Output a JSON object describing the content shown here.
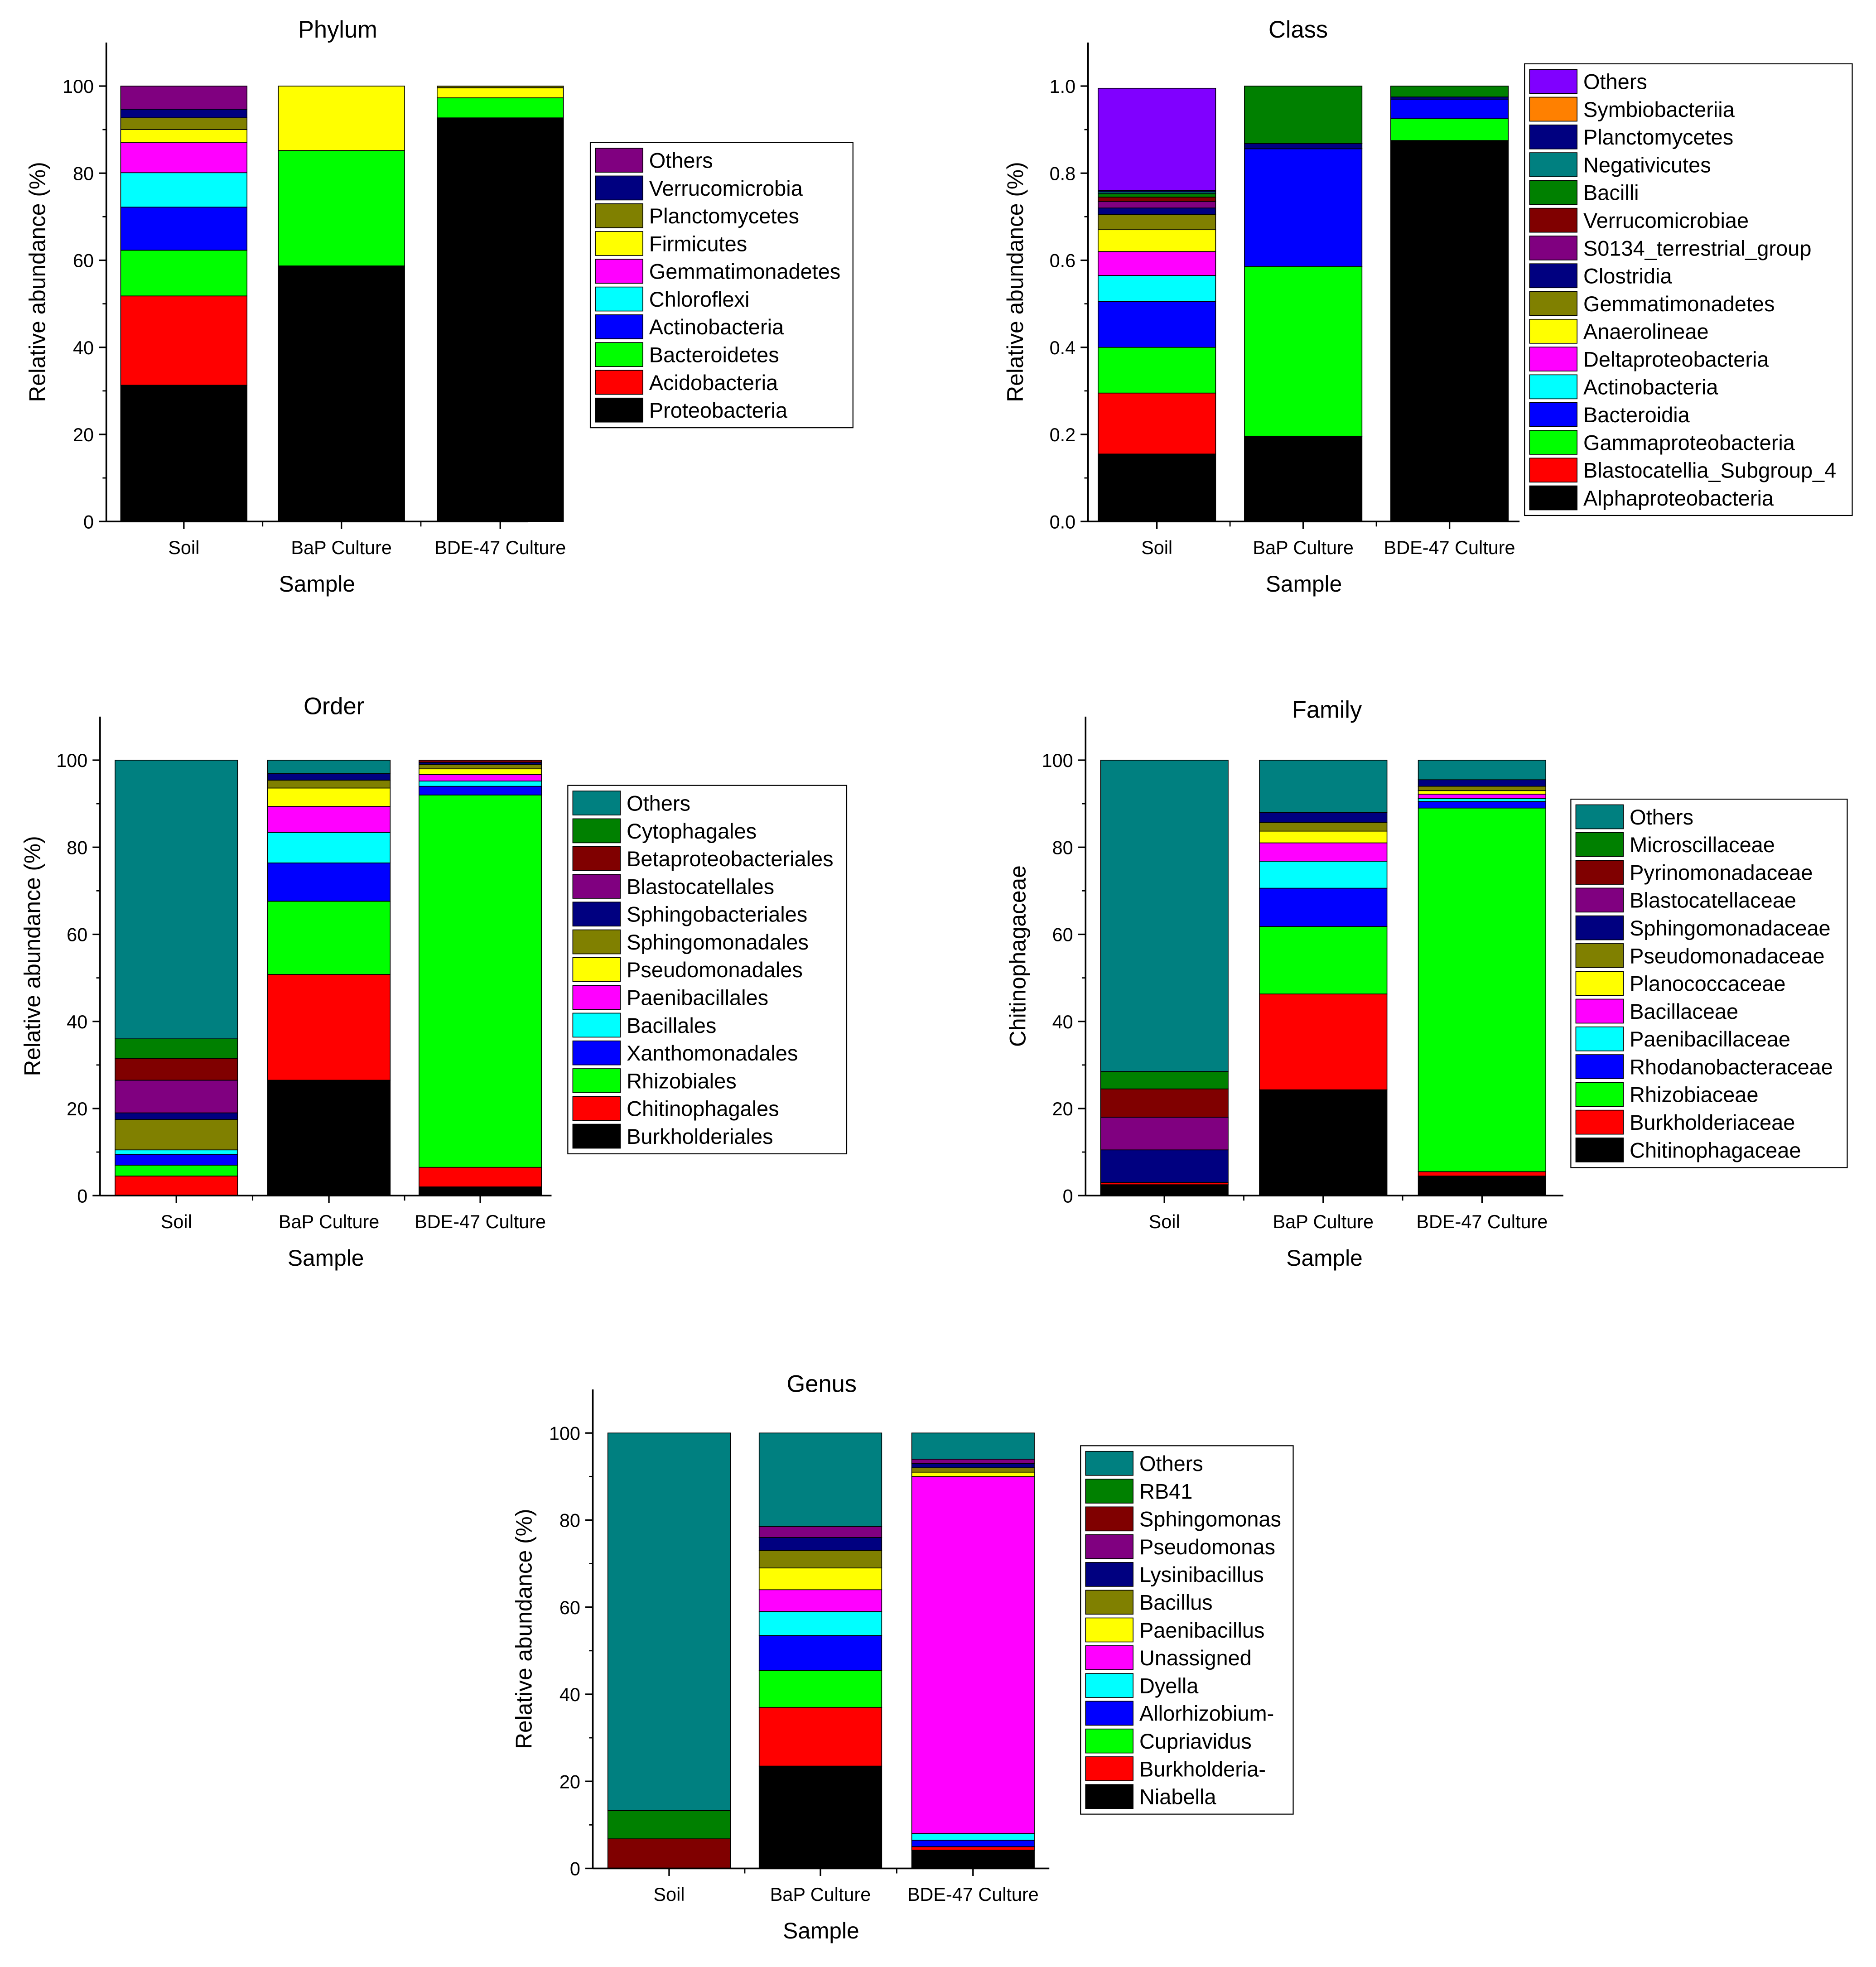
{
  "colors": {
    "black": "#000000",
    "red": "#ff0000",
    "green": "#00ff00",
    "blue": "#0000ff",
    "cyan": "#00ffff",
    "magenta": "#ff00ff",
    "yellow": "#ffff00",
    "olive": "#808000",
    "navy": "#000080",
    "purple": "#800080",
    "maroon": "#800000",
    "darkgreen": "#008000",
    "teal": "#008080",
    "orange": "#ff8000",
    "violet": "#8000ff"
  },
  "chart_data": [
    {
      "type": "bar",
      "stacked": true,
      "title": "Phylum",
      "xlabel": "Sample",
      "ylabel": "Relative abundance (%)",
      "ylim": [
        0,
        110
      ],
      "yticks": [
        0,
        20,
        40,
        60,
        80,
        100
      ],
      "ytick_labels": [
        "0",
        "20",
        "40",
        "60",
        "80",
        "100"
      ],
      "legend_position": "right",
      "categories": [
        "Soil",
        "BaP Culture",
        "BDE-47 Culture"
      ],
      "series": [
        {
          "name": "Proteobacteria",
          "color": "#000000",
          "values": [
            31.3,
            58.7,
            92.7
          ]
        },
        {
          "name": "Acidobacteria",
          "color": "#ff0000",
          "values": [
            20.5,
            0,
            0
          ]
        },
        {
          "name": "Bacteroidetes",
          "color": "#00ff00",
          "values": [
            10.5,
            26.5,
            4.6
          ]
        },
        {
          "name": "Actinobacteria",
          "color": "#0000ff",
          "values": [
            9.9,
            0,
            0
          ]
        },
        {
          "name": "Chloroflexi",
          "color": "#00ffff",
          "values": [
            7.9,
            0,
            0
          ]
        },
        {
          "name": "Gemmatimonadetes",
          "color": "#ff00ff",
          "values": [
            6.9,
            0,
            0
          ]
        },
        {
          "name": "Firmicutes",
          "color": "#ffff00",
          "values": [
            3.0,
            14.8,
            2.3
          ]
        },
        {
          "name": "Planctomycetes",
          "color": "#808000",
          "values": [
            2.7,
            0,
            0.4
          ]
        },
        {
          "name": "Verrucomicrobia",
          "color": "#000080",
          "values": [
            2.0,
            0,
            0
          ]
        },
        {
          "name": "Others",
          "color": "#800080",
          "values": [
            5.3,
            0,
            0
          ]
        }
      ]
    },
    {
      "type": "bar",
      "stacked": true,
      "title": "Class",
      "xlabel": "Sample",
      "ylabel": "Relative abundance (%)",
      "ylim": [
        0,
        1.1
      ],
      "yticks": [
        0,
        0.2,
        0.4,
        0.6,
        0.8,
        1.0
      ],
      "ytick_labels": [
        "0.0",
        "0.2",
        "0.4",
        "0.6",
        "0.8",
        "1.0"
      ],
      "legend_position": "right",
      "categories": [
        "Soil",
        "BaP Culture",
        "BDE-47 Culture"
      ],
      "series": [
        {
          "name": "Alphaproteobacteria",
          "color": "#000000",
          "values": [
            0.155,
            0.196,
            0.875
          ]
        },
        {
          "name": "Blastocatellia_Subgroup_4",
          "color": "#ff0000",
          "values": [
            0.14,
            0,
            0
          ]
        },
        {
          "name": "Gammaproteobacteria",
          "color": "#00ff00",
          "values": [
            0.105,
            0.39,
            0.05
          ]
        },
        {
          "name": "Bacteroidia",
          "color": "#0000ff",
          "values": [
            0.105,
            0.27,
            0.045
          ]
        },
        {
          "name": "Actinobacteria",
          "color": "#00ffff",
          "values": [
            0.06,
            0,
            0
          ]
        },
        {
          "name": "Deltaproteobacteria",
          "color": "#ff00ff",
          "values": [
            0.055,
            0,
            0
          ]
        },
        {
          "name": "Anaerolineae",
          "color": "#ffff00",
          "values": [
            0.05,
            0,
            0
          ]
        },
        {
          "name": "Gemmatimonadetes",
          "color": "#808000",
          "values": [
            0.035,
            0,
            0
          ]
        },
        {
          "name": "Clostridia",
          "color": "#000080",
          "values": [
            0.015,
            0.012,
            0.005
          ]
        },
        {
          "name": "S0134_terrestrial_group",
          "color": "#800080",
          "values": [
            0.015,
            0,
            0
          ]
        },
        {
          "name": "Verrucomicrobiae",
          "color": "#800000",
          "values": [
            0.01,
            0,
            0
          ]
        },
        {
          "name": "Bacilli",
          "color": "#008000",
          "values": [
            0.008,
            0.132,
            0.025
          ]
        },
        {
          "name": "Negativicutes",
          "color": "#008080",
          "values": [
            0.004,
            0,
            0
          ]
        },
        {
          "name": "Planctomycetes",
          "color": "#000080",
          "values": [
            0.003,
            0,
            0
          ]
        },
        {
          "name": "Symbiobacteriia",
          "color": "#ff8000",
          "values": [
            0,
            0,
            0
          ]
        },
        {
          "name": "Others",
          "color": "#8000ff",
          "values": [
            0.235,
            0,
            0
          ]
        }
      ]
    },
    {
      "type": "bar",
      "stacked": true,
      "title": "Order",
      "xlabel": "Sample",
      "ylabel": "Relative abundance (%)",
      "ylim": [
        0,
        110
      ],
      "yticks": [
        0,
        20,
        40,
        60,
        80,
        100
      ],
      "ytick_labels": [
        "0",
        "20",
        "40",
        "60",
        "80",
        "100"
      ],
      "legend_position": "right",
      "categories": [
        "Soil",
        "BaP Culture",
        "BDE-47 Culture"
      ],
      "series": [
        {
          "name": "Burkholderiales",
          "color": "#000000",
          "values": [
            0,
            26.5,
            2.0
          ]
        },
        {
          "name": "Chitinophagales",
          "color": "#ff0000",
          "values": [
            4.5,
            24.3,
            4.5
          ]
        },
        {
          "name": "Rhizobiales",
          "color": "#00ff00",
          "values": [
            2.5,
            16.8,
            85.5
          ]
        },
        {
          "name": "Xanthomonadales",
          "color": "#0000ff",
          "values": [
            2.5,
            8.8,
            2.0
          ]
        },
        {
          "name": "Bacillales",
          "color": "#00ffff",
          "values": [
            1.0,
            7.0,
            1.2
          ]
        },
        {
          "name": "Paenibacillales",
          "color": "#ff00ff",
          "values": [
            0,
            6.0,
            1.5
          ]
        },
        {
          "name": "Pseudomonadales",
          "color": "#ffff00",
          "values": [
            0,
            4.2,
            1.3
          ]
        },
        {
          "name": "Sphingomonadales",
          "color": "#808000",
          "values": [
            7.0,
            1.8,
            1.0
          ]
        },
        {
          "name": "Sphingobacteriales",
          "color": "#000080",
          "values": [
            1.5,
            1.5,
            0.5
          ]
        },
        {
          "name": "Blastocatellales",
          "color": "#800080",
          "values": [
            7.5,
            0,
            0
          ]
        },
        {
          "name": "Betaproteobacteriales",
          "color": "#800000",
          "values": [
            5.0,
            0,
            0.5
          ]
        },
        {
          "name": "Cytophagales",
          "color": "#008000",
          "values": [
            4.5,
            0,
            0
          ]
        },
        {
          "name": "Others",
          "color": "#008080",
          "values": [
            64.0,
            3.1,
            0
          ]
        }
      ]
    },
    {
      "type": "bar",
      "stacked": true,
      "title": "Family",
      "xlabel": "Sample",
      "ylabel": "Chitinophagaceae",
      "ylim": [
        0,
        110
      ],
      "yticks": [
        0,
        20,
        40,
        60,
        80,
        100
      ],
      "ytick_labels": [
        "0",
        "20",
        "40",
        "60",
        "80",
        "100"
      ],
      "legend_position": "right",
      "categories": [
        "Soil",
        "BaP Culture",
        "BDE-47 Culture"
      ],
      "series": [
        {
          "name": "Chitinophagaceae",
          "color": "#000000",
          "values": [
            2.5,
            24.3,
            4.5
          ]
        },
        {
          "name": "Burkholderiaceae",
          "color": "#ff0000",
          "values": [
            0.5,
            22.0,
            1.0
          ]
        },
        {
          "name": "Rhizobiaceae",
          "color": "#00ff00",
          "values": [
            0,
            15.5,
            83.5
          ]
        },
        {
          "name": "Rhodanobacteraceae",
          "color": "#0000ff",
          "values": [
            0,
            8.8,
            1.5
          ]
        },
        {
          "name": "Paenibacillaceae",
          "color": "#00ffff",
          "values": [
            0,
            6.2,
            0.7
          ]
        },
        {
          "name": "Bacillaceae",
          "color": "#ff00ff",
          "values": [
            0,
            4.2,
            1.0
          ]
        },
        {
          "name": "Planococcaceae",
          "color": "#ffff00",
          "values": [
            0,
            2.7,
            0.8
          ]
        },
        {
          "name": "Pseudomonadaceae",
          "color": "#808000",
          "values": [
            0,
            2.0,
            1.0
          ]
        },
        {
          "name": "Sphingomonadaceae",
          "color": "#000080",
          "values": [
            7.5,
            2.3,
            1.5
          ]
        },
        {
          "name": "Blastocatellaceae",
          "color": "#800080",
          "values": [
            7.5,
            0,
            0
          ]
        },
        {
          "name": "Pyrinomonadaceae",
          "color": "#800000",
          "values": [
            6.5,
            0,
            0
          ]
        },
        {
          "name": "Microscillaceae",
          "color": "#008000",
          "values": [
            4.0,
            0,
            0
          ]
        },
        {
          "name": "Others",
          "color": "#008080",
          "values": [
            71.5,
            12.0,
            4.5
          ]
        }
      ]
    },
    {
      "type": "bar",
      "stacked": true,
      "title": "Genus",
      "xlabel": "Sample",
      "ylabel": "Relative abundance (%)",
      "ylim": [
        0,
        110
      ],
      "yticks": [
        0,
        20,
        40,
        60,
        80,
        100
      ],
      "ytick_labels": [
        "0",
        "20",
        "40",
        "60",
        "80",
        "100"
      ],
      "legend_position": "right",
      "categories": [
        "Soil",
        "BaP Culture",
        "BDE-47 Culture"
      ],
      "series": [
        {
          "name": "Niabella",
          "color": "#000000",
          "values": [
            0,
            23.5,
            4.2
          ]
        },
        {
          "name": "Burkholderia-",
          "color": "#ff0000",
          "values": [
            0,
            13.5,
            0.8
          ]
        },
        {
          "name": "Cupriavidus",
          "color": "#00ff00",
          "values": [
            0,
            8.5,
            0
          ]
        },
        {
          "name": "Allorhizobium-",
          "color": "#0000ff",
          "values": [
            0,
            8.0,
            1.5
          ]
        },
        {
          "name": "Dyella",
          "color": "#00ffff",
          "values": [
            0,
            5.5,
            1.5
          ]
        },
        {
          "name": "Unassigned",
          "color": "#ff00ff",
          "values": [
            0,
            5.0,
            82.0
          ]
        },
        {
          "name": "Paenibacillus",
          "color": "#ffff00",
          "values": [
            0,
            5.0,
            1.0
          ]
        },
        {
          "name": "Bacillus",
          "color": "#808000",
          "values": [
            0,
            4.0,
            1.0
          ]
        },
        {
          "name": "Lysinibacillus",
          "color": "#000080",
          "values": [
            0,
            3.0,
            1.0
          ]
        },
        {
          "name": "Pseudomonas",
          "color": "#800080",
          "values": [
            0,
            2.5,
            1.0
          ]
        },
        {
          "name": "Sphingomonas",
          "color": "#800000",
          "values": [
            6.8,
            0,
            0
          ]
        },
        {
          "name": "RB41",
          "color": "#008000",
          "values": [
            6.5,
            0,
            0
          ]
        },
        {
          "name": "Others",
          "color": "#008080",
          "values": [
            86.7,
            21.5,
            6.0
          ]
        }
      ]
    }
  ]
}
